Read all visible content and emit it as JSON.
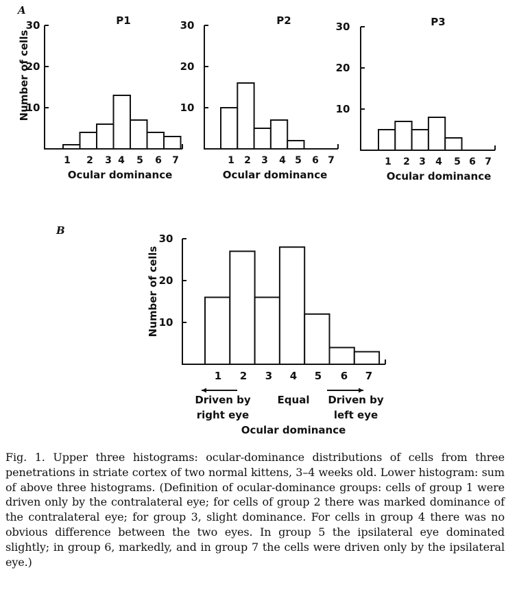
{
  "chart_data": [
    {
      "panel": "A",
      "type": "bar",
      "title": "P1",
      "categories": [
        "1",
        "2",
        "3",
        "4",
        "5",
        "6",
        "7"
      ],
      "values": [
        1,
        4,
        6,
        13,
        7,
        4,
        3
      ],
      "xlabel": "Ocular dominance",
      "ylabel": "Number of cells",
      "yticks": [
        "10",
        "20",
        "30"
      ],
      "ylim": [
        0,
        30
      ]
    },
    {
      "type": "bar",
      "title": "P2",
      "categories": [
        "1",
        "2",
        "3",
        "4",
        "5",
        "6",
        "7"
      ],
      "values": [
        10,
        16,
        5,
        7,
        2,
        0,
        0
      ],
      "xlabel": "Ocular dominance",
      "yticks": [
        "10",
        "20",
        "30"
      ],
      "ylim": [
        0,
        30
      ]
    },
    {
      "type": "bar",
      "title": "P3",
      "categories": [
        "1",
        "2",
        "3",
        "4",
        "5",
        "6",
        "7"
      ],
      "values": [
        5,
        7,
        5,
        8,
        3,
        0,
        0
      ],
      "xlabel": "Ocular dominance",
      "yticks": [
        "10",
        "20",
        "30"
      ],
      "ylim": [
        0,
        30
      ]
    },
    {
      "panel": "B",
      "type": "bar",
      "title": "",
      "categories": [
        "1",
        "2",
        "3",
        "4",
        "5",
        "6",
        "7"
      ],
      "values": [
        16,
        27,
        16,
        28,
        12,
        4,
        3
      ],
      "xlabel": "Ocular dominance",
      "ylabel": "Number of cells",
      "yticks": [
        "10",
        "20",
        "30"
      ],
      "ylim": [
        0,
        30
      ],
      "annotations": {
        "left_line1": "Driven by",
        "left_line2": "right eye",
        "middle": "Equal",
        "right_line1": "Driven by",
        "right_line2": "left eye"
      }
    }
  ],
  "caption": "Fig. 1. Upper three histograms: ocular-dominance distributions of cells from three penetrations in striate cortex of two normal kittens, 3–4 weeks old. Lower histogram: sum of above three histograms. (Definition of ocular-dominance groups: cells of group 1 were driven only by the contralateral eye; for cells of group 2 there was marked dominance of the contralateral eye; for group 3, slight dominance. For cells in group 4 there was no obvious difference between the two eyes. In group 5 the ipsilateral eye dominated slightly; in group 6, markedly, and in group 7 the cells were driven only by the ipsilateral eye.)"
}
